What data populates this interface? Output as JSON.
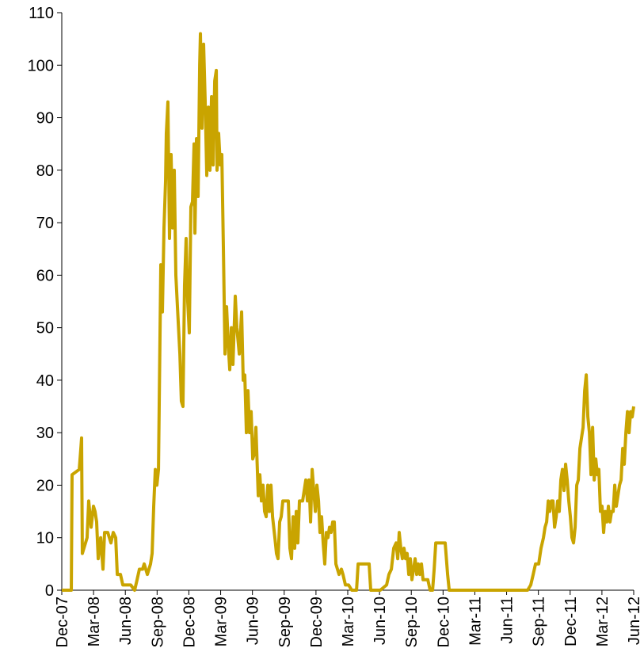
{
  "chart_data": {
    "type": "line",
    "color": "#c9a400",
    "xlim": [
      0,
      54
    ],
    "xticks": [
      {
        "value": 0,
        "label": "Dec-07"
      },
      {
        "value": 3,
        "label": "Mar-08"
      },
      {
        "value": 6,
        "label": "Jun-08"
      },
      {
        "value": 9,
        "label": "Sep-08"
      },
      {
        "value": 12,
        "label": "Dec-08"
      },
      {
        "value": 15,
        "label": "Mar-09"
      },
      {
        "value": 18,
        "label": "Jun-09"
      },
      {
        "value": 21,
        "label": "Sep-09"
      },
      {
        "value": 24,
        "label": "Dec-09"
      },
      {
        "value": 27,
        "label": "Mar-10"
      },
      {
        "value": 30,
        "label": "Jun-10"
      },
      {
        "value": 33,
        "label": "Sep-10"
      },
      {
        "value": 36,
        "label": "Dec-10"
      },
      {
        "value": 39,
        "label": "Mar-11"
      },
      {
        "value": 42,
        "label": "Jun-11"
      },
      {
        "value": 45,
        "label": "Sep-11"
      },
      {
        "value": 48,
        "label": "Dec-11"
      },
      {
        "value": 51,
        "label": "Mar-12"
      },
      {
        "value": 54,
        "label": "Jun-12"
      }
    ],
    "ylim": [
      0,
      110
    ],
    "yticks": [
      0,
      10,
      20,
      30,
      40,
      50,
      60,
      70,
      80,
      90,
      100,
      110
    ],
    "x": [
      0,
      0.9,
      0.97,
      1.65,
      1.8,
      1.87,
      1.94,
      2.39,
      2.54,
      2.77,
      2.99,
      3.14,
      3.29,
      3.44,
      3.67,
      3.89,
      4.04,
      4.34,
      4.64,
      4.86,
      5.09,
      5.24,
      5.54,
      5.76,
      6.51,
      6.88,
      7.11,
      7.33,
      7.63,
      7.78,
      8.08,
      8.38,
      8.53,
      8.68,
      8.83,
      8.98,
      9.13,
      9.35,
      9.5,
      9.65,
      9.8,
      9.87,
      10.02,
      10.17,
      10.32,
      10.47,
      10.62,
      10.77,
      10.92,
      11.15,
      11.29,
      11.44,
      11.59,
      11.74,
      11.89,
      12.04,
      12.19,
      12.34,
      12.49,
      12.57,
      12.72,
      12.87,
      13.02,
      13.09,
      13.24,
      13.39,
      13.54,
      13.69,
      13.84,
      13.99,
      14.14,
      14.29,
      14.44,
      14.59,
      14.66,
      14.81,
      14.96,
      15.11,
      15.26,
      15.41,
      15.56,
      15.71,
      15.86,
      16.01,
      16.16,
      16.38,
      16.53,
      16.76,
      16.98,
      17.13,
      17.28,
      17.43,
      17.58,
      17.73,
      17.88,
      18.03,
      18.18,
      18.33,
      18.55,
      18.7,
      18.85,
      19.0,
      19.15,
      19.3,
      19.45,
      19.6,
      19.75,
      19.9,
      20.12,
      20.27,
      20.42,
      20.57,
      20.72,
      20.87,
      21.17,
      21.39,
      21.54,
      21.69,
      21.84,
      21.99,
      22.14,
      22.29,
      22.44,
      22.74,
      22.89,
      23.04,
      23.19,
      23.34,
      23.49,
      23.64,
      23.79,
      23.94,
      24.09,
      24.24,
      24.38,
      24.53,
      24.68,
      24.83,
      24.98,
      25.13,
      25.28,
      25.43,
      25.58,
      25.73,
      25.88,
      26.03,
      26.18,
      26.4,
      26.55,
      26.78,
      27.08,
      27.38,
      27.83,
      27.98,
      29.02,
      29.17,
      30.07,
      30.67,
      30.89,
      31.12,
      31.34,
      31.57,
      31.72,
      31.86,
      32.01,
      32.16,
      32.31,
      32.46,
      32.61,
      32.76,
      32.91,
      33.06,
      33.21,
      33.36,
      33.51,
      33.66,
      33.81,
      33.96,
      34.11,
      34.56,
      34.78,
      35.01,
      35.16,
      35.31,
      36.2,
      36.43,
      36.58,
      43.98,
      44.28,
      44.51,
      44.73,
      45.03,
      45.25,
      45.48,
      45.63,
      45.78,
      45.93,
      46.08,
      46.23,
      46.38,
      46.53,
      46.68,
      46.82,
      46.97,
      47.12,
      47.27,
      47.42,
      47.57,
      47.72,
      47.87,
      48.02,
      48.17,
      48.32,
      48.47,
      48.62,
      48.77,
      48.92,
      49.07,
      49.22,
      49.37,
      49.52,
      49.67,
      49.82,
      49.97,
      50.12,
      50.27,
      50.42,
      50.57,
      50.71,
      50.86,
      51.01,
      51.16,
      51.31,
      51.46,
      51.61,
      51.76,
      51.91,
      52.06,
      52.21,
      52.36,
      52.51,
      52.66,
      52.81,
      52.96,
      53.11,
      53.26,
      53.41,
      53.56,
      53.71,
      53.86,
      54.0
    ],
    "values": [
      0,
      0,
      22,
      23,
      27,
      29,
      7,
      10,
      17,
      12,
      16,
      15,
      13,
      6,
      10,
      4,
      11,
      11,
      9,
      11,
      10,
      3,
      3,
      1,
      1,
      0,
      2,
      4,
      4,
      5,
      3,
      5,
      7,
      16,
      23,
      20,
      23,
      62,
      53,
      69,
      78,
      87,
      93,
      67,
      83,
      69,
      80,
      60,
      54,
      45,
      36,
      35,
      58,
      67,
      55,
      49,
      73,
      74,
      85,
      68,
      86,
      75,
      100,
      106,
      88,
      104,
      93,
      79,
      92,
      80,
      94,
      81,
      97,
      99,
      80,
      87,
      81,
      83,
      65,
      45,
      54,
      47,
      42,
      50,
      43,
      56,
      50,
      45,
      53,
      40,
      41,
      30,
      38,
      30,
      34,
      25,
      26,
      31,
      18,
      22,
      17,
      20,
      15,
      14,
      20,
      15,
      20,
      14,
      10,
      7,
      6,
      13,
      14,
      17,
      17,
      17,
      8,
      6,
      14,
      8,
      15,
      9,
      17,
      17,
      19,
      21,
      17,
      21,
      13,
      23,
      19,
      15,
      20,
      17,
      11,
      14,
      9,
      5,
      11,
      10,
      12,
      11,
      13,
      13,
      5,
      4,
      3,
      4,
      3,
      1,
      1,
      0,
      0,
      5,
      5,
      0,
      0,
      1,
      3,
      4,
      8,
      9,
      6,
      11,
      8,
      6,
      8,
      6,
      7,
      3,
      6,
      2,
      4,
      6,
      3,
      5,
      3,
      5,
      2,
      2,
      0,
      0,
      4,
      9,
      9,
      3,
      0,
      0,
      1,
      3,
      5,
      5,
      8,
      10,
      12,
      13,
      17,
      15,
      17,
      17,
      12,
      14,
      17,
      15,
      21,
      23,
      19,
      24,
      21,
      17,
      14,
      10,
      9,
      12,
      20,
      21,
      27,
      29,
      31,
      38,
      41,
      33,
      30,
      22,
      31,
      21,
      25,
      22,
      23,
      15,
      16,
      11,
      15,
      13,
      16,
      13,
      15,
      15,
      20,
      16,
      18,
      20,
      21,
      27,
      24,
      30,
      34,
      30,
      34,
      33,
      35
    ]
  }
}
